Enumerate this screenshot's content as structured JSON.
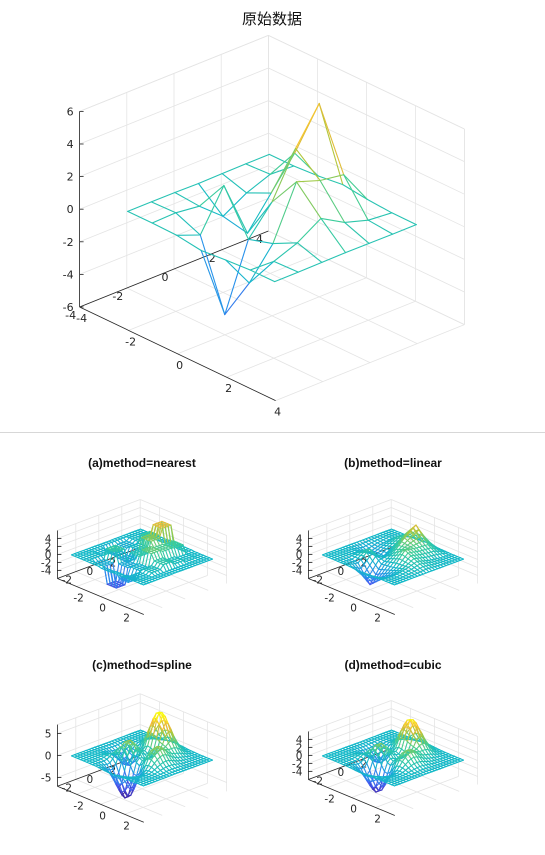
{
  "chart_data": [
    {
      "type": "surface",
      "title": "原始数据",
      "x": [
        -3,
        -2,
        -1,
        0,
        1,
        2,
        3
      ],
      "y": [
        -3,
        -2,
        -1,
        0,
        1,
        2,
        3
      ],
      "function": "peaks",
      "xlim": [
        -4,
        4
      ],
      "ylim": [
        -4,
        4
      ],
      "zlim": [
        -6,
        6
      ],
      "xticks": [
        "-4",
        "-2",
        "0",
        "2",
        "4"
      ],
      "yticks": [
        "-4",
        "-2",
        "0",
        "2",
        "4"
      ],
      "zticks": [
        "-6",
        "-4",
        "-2",
        "0",
        "2",
        "4",
        "6"
      ],
      "grid": true,
      "colormap": "parula"
    },
    {
      "type": "surface",
      "title": "(a)method=nearest",
      "method": "nearest",
      "x_range": [
        -3,
        3
      ],
      "y_range": [
        -3,
        3
      ],
      "step": 0.25,
      "zlim": [
        -6,
        6
      ],
      "xticks": [
        "-2",
        "0",
        "2"
      ],
      "yticks": [
        "-2",
        "0",
        "2"
      ],
      "zticks": [
        "-4",
        "-2",
        "0",
        "2",
        "4"
      ],
      "grid": true,
      "colormap": "parula"
    },
    {
      "type": "surface",
      "title": "(b)method=linear",
      "method": "linear",
      "x_range": [
        -3,
        3
      ],
      "y_range": [
        -3,
        3
      ],
      "step": 0.25,
      "zlim": [
        -6,
        6
      ],
      "xticks": [
        "-2",
        "0",
        "2"
      ],
      "yticks": [
        "-2",
        "0",
        "2"
      ],
      "zticks": [
        "-4",
        "-2",
        "0",
        "2",
        "4"
      ],
      "grid": true,
      "colormap": "parula"
    },
    {
      "type": "surface",
      "title": "(c)method=spline",
      "method": "spline",
      "x_range": [
        -3,
        3
      ],
      "y_range": [
        -3,
        3
      ],
      "step": 0.25,
      "zlim": [
        -7,
        7
      ],
      "xticks": [
        "-2",
        "0",
        "2"
      ],
      "yticks": [
        "-2",
        "0",
        "2"
      ],
      "zticks": [
        "-5",
        "0",
        "5"
      ],
      "grid": true,
      "colormap": "parula"
    },
    {
      "type": "surface",
      "title": "(d)method=cubic",
      "method": "cubic",
      "x_range": [
        -3,
        3
      ],
      "y_range": [
        -3,
        3
      ],
      "step": 0.25,
      "zlim": [
        -6,
        6
      ],
      "xticks": [
        "-2",
        "0",
        "2"
      ],
      "yticks": [
        "-2",
        "0",
        "2"
      ],
      "zticks": [
        "-4",
        "-2",
        "0",
        "2",
        "4"
      ],
      "grid": true,
      "colormap": "parula"
    }
  ]
}
